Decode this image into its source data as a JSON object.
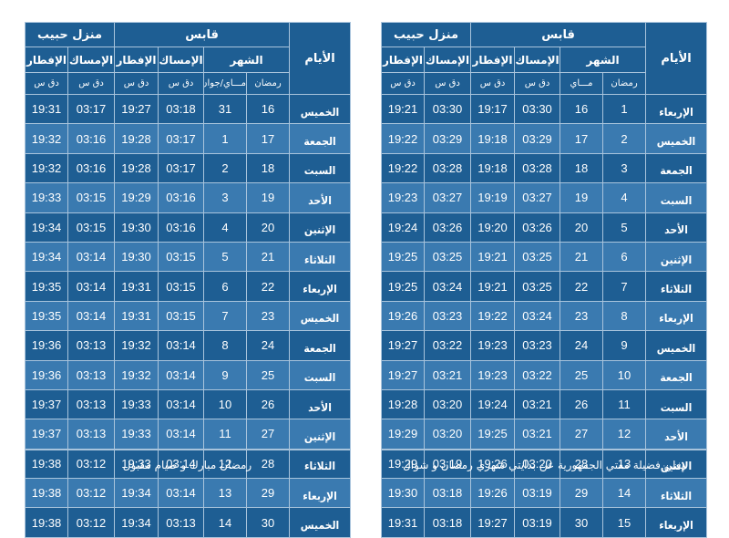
{
  "left": {
    "city": "قابس",
    "house": "منزل حبيب",
    "days_header": "الأيام",
    "month_header": "الشهر",
    "imsak_label": "الإمساك",
    "iftar_label": "الإفطار",
    "ramadan_label": "رمضان",
    "greg_label": "مـــاي/جوان",
    "time_unit": "دق س",
    "footer": "رمضان مبارك و صيام مقبول",
    "rows": [
      {
        "day": "الخميس",
        "r": "16",
        "g": "31",
        "imsak": "03:18",
        "iftar": "19:27",
        "imsak2": "03:17",
        "iftar2": "19:31"
      },
      {
        "day": "الجمعة",
        "r": "17",
        "g": "1",
        "imsak": "03:17",
        "iftar": "19:28",
        "imsak2": "03:16",
        "iftar2": "19:32"
      },
      {
        "day": "السبت",
        "r": "18",
        "g": "2",
        "imsak": "03:17",
        "iftar": "19:28",
        "imsak2": "03:16",
        "iftar2": "19:32"
      },
      {
        "day": "الأحد",
        "r": "19",
        "g": "3",
        "imsak": "03:16",
        "iftar": "19:29",
        "imsak2": "03:15",
        "iftar2": "19:33"
      },
      {
        "day": "الإثنين",
        "r": "20",
        "g": "4",
        "imsak": "03:16",
        "iftar": "19:30",
        "imsak2": "03:15",
        "iftar2": "19:34"
      },
      {
        "day": "الثلاثاء",
        "r": "21",
        "g": "5",
        "imsak": "03:15",
        "iftar": "19:30",
        "imsak2": "03:14",
        "iftar2": "19:34"
      },
      {
        "day": "الإربعاء",
        "r": "22",
        "g": "6",
        "imsak": "03:15",
        "iftar": "19:31",
        "imsak2": "03:14",
        "iftar2": "19:35"
      },
      {
        "day": "الخميس",
        "r": "23",
        "g": "7",
        "imsak": "03:15",
        "iftar": "19:31",
        "imsak2": "03:14",
        "iftar2": "19:35"
      },
      {
        "day": "الجمعة",
        "r": "24",
        "g": "8",
        "imsak": "03:14",
        "iftar": "19:32",
        "imsak2": "03:13",
        "iftar2": "19:36"
      },
      {
        "day": "السبت",
        "r": "25",
        "g": "9",
        "imsak": "03:14",
        "iftar": "19:32",
        "imsak2": "03:13",
        "iftar2": "19:36"
      },
      {
        "day": "الأحد",
        "r": "26",
        "g": "10",
        "imsak": "03:14",
        "iftar": "19:33",
        "imsak2": "03:13",
        "iftar2": "19:37"
      },
      {
        "day": "الإثنين",
        "r": "27",
        "g": "11",
        "imsak": "03:14",
        "iftar": "19:33",
        "imsak2": "03:13",
        "iftar2": "19:37"
      },
      {
        "day": "الثلاثاء",
        "r": "28",
        "g": "12",
        "imsak": "03:14",
        "iftar": "19:33",
        "imsak2": "03:12",
        "iftar2": "19:38"
      },
      {
        "day": "الإربعاء",
        "r": "29",
        "g": "13",
        "imsak": "03:14",
        "iftar": "19:34",
        "imsak2": "03:12",
        "iftar2": "19:38"
      },
      {
        "day": "الخميس",
        "r": "30",
        "g": "14",
        "imsak": "03:13",
        "iftar": "19:34",
        "imsak2": "03:12",
        "iftar2": "19:38"
      }
    ]
  },
  "right": {
    "city": "قابس",
    "house": "منزل حبيب",
    "days_header": "الأيام",
    "month_header": "الشهر",
    "imsak_label": "الإمساك",
    "iftar_label": "الإفطار",
    "ramadan_label": "رمضان",
    "greg_label": "مـــاي",
    "time_unit": "دق س",
    "footer": "يعلن فضيلة مفتي الجمهورية عن بدايتي شهري رمضان و شوال",
    "rows": [
      {
        "day": "الإربعاء",
        "r": "1",
        "g": "16",
        "imsak": "03:30",
        "iftar": "19:17",
        "imsak2": "03:30",
        "iftar2": "19:21"
      },
      {
        "day": "الخميس",
        "r": "2",
        "g": "17",
        "imsak": "03:29",
        "iftar": "19:18",
        "imsak2": "03:29",
        "iftar2": "19:22"
      },
      {
        "day": "الجمعة",
        "r": "3",
        "g": "18",
        "imsak": "03:28",
        "iftar": "19:18",
        "imsak2": "03:28",
        "iftar2": "19:22"
      },
      {
        "day": "السبت",
        "r": "4",
        "g": "19",
        "imsak": "03:27",
        "iftar": "19:19",
        "imsak2": "03:27",
        "iftar2": "19:23"
      },
      {
        "day": "الأحد",
        "r": "5",
        "g": "20",
        "imsak": "03:26",
        "iftar": "19:20",
        "imsak2": "03:26",
        "iftar2": "19:24"
      },
      {
        "day": "الإثنين",
        "r": "6",
        "g": "21",
        "imsak": "03:25",
        "iftar": "19:21",
        "imsak2": "03:25",
        "iftar2": "19:25"
      },
      {
        "day": "الثلاثاء",
        "r": "7",
        "g": "22",
        "imsak": "03:25",
        "iftar": "19:21",
        "imsak2": "03:24",
        "iftar2": "19:25"
      },
      {
        "day": "الإربعاء",
        "r": "8",
        "g": "23",
        "imsak": "03:24",
        "iftar": "19:22",
        "imsak2": "03:23",
        "iftar2": "19:26"
      },
      {
        "day": "الخميس",
        "r": "9",
        "g": "24",
        "imsak": "03:23",
        "iftar": "19:23",
        "imsak2": "03:22",
        "iftar2": "19:27"
      },
      {
        "day": "الجمعة",
        "r": "10",
        "g": "25",
        "imsak": "03:22",
        "iftar": "19:23",
        "imsak2": "03:21",
        "iftar2": "19:27"
      },
      {
        "day": "السبت",
        "r": "11",
        "g": "26",
        "imsak": "03:21",
        "iftar": "19:24",
        "imsak2": "03:20",
        "iftar2": "19:28"
      },
      {
        "day": "الأحد",
        "r": "12",
        "g": "27",
        "imsak": "03:21",
        "iftar": "19:25",
        "imsak2": "03:20",
        "iftar2": "19:29"
      },
      {
        "day": "الإثنين",
        "r": "13",
        "g": "28",
        "imsak": "03:20",
        "iftar": "19:26",
        "imsak2": "03:19",
        "iftar2": "19:29"
      },
      {
        "day": "الثلاثاء",
        "r": "14",
        "g": "29",
        "imsak": "03:19",
        "iftar": "19:26",
        "imsak2": "03:18",
        "iftar2": "19:30"
      },
      {
        "day": "الإربعاء",
        "r": "15",
        "g": "30",
        "imsak": "03:19",
        "iftar": "19:27",
        "imsak2": "03:18",
        "iftar2": "19:31"
      }
    ]
  }
}
